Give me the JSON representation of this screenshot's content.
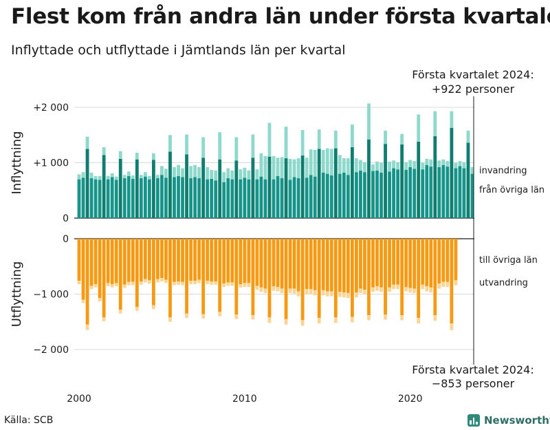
{
  "title": "Flest kom från andra län under första kvartalet",
  "subtitle": "Inflyttade och utflyttade i Jämtlands län per kvartal",
  "source": "Källa: SCB",
  "brand": "Newsworthy",
  "colors": {
    "in_base": "#16948a",
    "in_base_peak": "#0f7d70",
    "in_top": "#8ed8cc",
    "out_base": "#f59a12",
    "out_top": "#fad596",
    "grid": "#d9d9d9",
    "axis": "#1a1a1a"
  },
  "chart_data": {
    "type": "bar",
    "stacked": true,
    "x_start": 2000,
    "x_step": 0.25,
    "x_ticks": [
      2000,
      2010,
      2020
    ],
    "x_tick_labels": [
      "2000",
      "2010",
      "2020"
    ],
    "panels": [
      {
        "id": "in",
        "ylabel": "Inflyttning",
        "ylim": [
          0,
          2000
        ],
        "y_ticks": [
          0,
          1000,
          2000
        ],
        "y_tick_labels": [
          "0",
          "+1 000",
          "+2 000"
        ],
        "annotation": [
          "Första kvartalet 2024:",
          "+922 personer"
        ],
        "series": [
          {
            "name": "från övriga län",
            "values": [
              700,
              730,
              1250,
              720,
              700,
              690,
              1140,
              700,
              740,
              690,
              1070,
              720,
              760,
              710,
              1060,
              720,
              750,
              700,
              1050,
              720,
              780,
              730,
              1200,
              740,
              760,
              740,
              1150,
              720,
              740,
              720,
              1090,
              700,
              710,
              680,
              1060,
              650,
              720,
              700,
              1040,
              700,
              730,
              700,
              1090,
              700,
              750,
              700,
              1110,
              700,
              760,
              720,
              1080,
              690,
              740,
              720,
              1130,
              730,
              780,
              750,
              1250,
              820,
              800,
              770,
              1260,
              800,
              820,
              780,
              1280,
              830,
              860,
              830,
              1420,
              850,
              860,
              820,
              1340,
              840,
              900,
              880,
              1330,
              870,
              920,
              890,
              1380,
              880,
              960,
              930,
              1480,
              920,
              960,
              930,
              1630,
              900,
              940,
              900,
              1360,
              800
            ]
          },
          {
            "name": "invandring",
            "values": [
              90,
              100,
              220,
              100,
              60,
              70,
              140,
              60,
              70,
              60,
              140,
              60,
              80,
              60,
              120,
              60,
              80,
              60,
              120,
              60,
              160,
              160,
              300,
              180,
              200,
              160,
              360,
              220,
              220,
              200,
              370,
              220,
              160,
              180,
              490,
              180,
              180,
              160,
              420,
              180,
              180,
              160,
              420,
              180,
              420,
              420,
              610,
              420,
              330,
              380,
              570,
              380,
              320,
              360,
              460,
              360,
              460,
              480,
              350,
              410,
              460,
              480,
              320,
              340,
              260,
              300,
              410,
              250,
              190,
              180,
              650,
              120,
              160,
              180,
              240,
              180,
              140,
              130,
              190,
              140,
              130,
              140,
              490,
              120,
              110,
              130,
              450,
              120,
              100,
              100,
              300,
              100,
              90,
              110,
              220,
              120
            ]
          }
        ]
      },
      {
        "id": "out",
        "ylabel": "Utflyttning",
        "ylim": [
          -2000,
          0
        ],
        "y_ticks": [
          0,
          -1000,
          -2000
        ],
        "y_tick_labels": [
          "0",
          "−1 000",
          "−2 000"
        ],
        "annotation": [
          "Första kvartalet 2024:",
          "−853 personer"
        ],
        "series": [
          {
            "name": "till övriga län",
            "values": [
              -760,
              -1100,
              -1550,
              -850,
              -820,
              -1070,
              -1420,
              -800,
              -820,
              -800,
              -1280,
              -830,
              -780,
              -780,
              -1230,
              -770,
              -730,
              -750,
              -1200,
              -730,
              -710,
              -740,
              -1420,
              -780,
              -770,
              -780,
              -1350,
              -760,
              -760,
              -740,
              -1360,
              -760,
              -770,
              -770,
              -1320,
              -810,
              -790,
              -790,
              -1370,
              -820,
              -800,
              -800,
              -1380,
              -850,
              -880,
              -900,
              -1420,
              -860,
              -870,
              -900,
              -1450,
              -900,
              -900,
              -950,
              -1470,
              -910,
              -910,
              -930,
              -1430,
              -930,
              -950,
              -950,
              -1420,
              -960,
              -970,
              -980,
              -1410,
              -970,
              -900,
              -920,
              -1380,
              -880,
              -860,
              -880,
              -1370,
              -880,
              -830,
              -830,
              -1380,
              -870,
              -890,
              -900,
              -1430,
              -830,
              -860,
              -880,
              -1380,
              -810,
              -780,
              -780,
              -1530,
              -750
            ]
          },
          {
            "name": "utvandring",
            "values": [
              -60,
              -60,
              -100,
              -60,
              -60,
              -60,
              -70,
              -60,
              -60,
              -60,
              -70,
              -60,
              -60,
              -60,
              -70,
              -60,
              -60,
              -60,
              -70,
              -60,
              -60,
              -60,
              -80,
              -60,
              -60,
              -60,
              -80,
              -60,
              -60,
              -60,
              -80,
              -60,
              -60,
              -60,
              -80,
              -60,
              -60,
              -60,
              -80,
              -60,
              -70,
              -70,
              -80,
              -70,
              -80,
              -80,
              -100,
              -80,
              -80,
              -80,
              -100,
              -80,
              -90,
              -90,
              -100,
              -90,
              -90,
              -90,
              -100,
              -90,
              -90,
              -90,
              -100,
              -90,
              -90,
              -90,
              -100,
              -90,
              -80,
              -80,
              -90,
              -80,
              -80,
              -80,
              -90,
              -80,
              -80,
              -80,
              -90,
              -80,
              -80,
              -80,
              -100,
              -80,
              -90,
              -90,
              -100,
              -90,
              -90,
              -90,
              -120,
              -90
            ]
          }
        ]
      }
    ]
  }
}
